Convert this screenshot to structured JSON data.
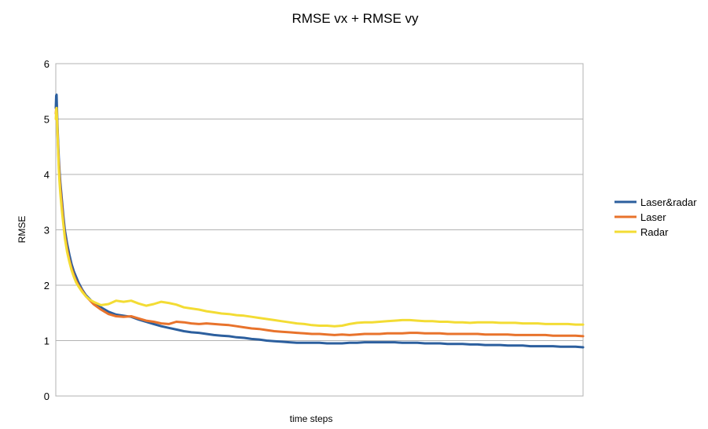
{
  "chart_data": {
    "type": "line",
    "title": "RMSE vx + RMSE vy",
    "xlabel": "time steps",
    "ylabel": "RMSE",
    "ylim": [
      0,
      6
    ],
    "yticks": [
      "0",
      "1",
      "2",
      "3",
      "4",
      "5",
      "6"
    ],
    "grid": true,
    "legend_position": "right",
    "x": [
      0,
      0.5,
      1,
      2,
      3,
      4,
      5,
      6,
      8,
      10,
      12,
      15,
      18,
      21,
      24,
      27,
      30,
      35,
      40,
      45,
      50,
      60,
      70,
      80,
      90,
      100,
      110,
      120,
      130,
      140,
      150,
      160,
      170,
      180,
      190,
      200,
      210,
      220,
      230,
      240,
      250,
      260,
      270,
      280,
      290,
      300,
      310,
      320,
      330,
      340,
      350,
      360,
      370,
      380,
      390,
      400,
      410,
      420,
      430,
      440,
      450,
      460,
      470,
      480,
      490,
      500,
      510,
      520,
      530,
      540,
      550,
      560,
      570,
      580,
      590,
      600,
      610,
      620,
      630,
      640,
      650,
      660,
      670,
      680,
      690,
      700
    ],
    "series": [
      {
        "name": "Laser&radar",
        "color": "#2c5f9e",
        "values": [
          5.2,
          5.42,
          5.44,
          5.0,
          4.6,
          4.3,
          4.05,
          3.85,
          3.55,
          3.25,
          3.0,
          2.75,
          2.55,
          2.38,
          2.25,
          2.15,
          2.05,
          1.92,
          1.82,
          1.75,
          1.68,
          1.6,
          1.52,
          1.47,
          1.45,
          1.43,
          1.38,
          1.34,
          1.3,
          1.26,
          1.23,
          1.2,
          1.17,
          1.15,
          1.14,
          1.12,
          1.1,
          1.09,
          1.08,
          1.06,
          1.05,
          1.03,
          1.02,
          1.0,
          0.99,
          0.98,
          0.97,
          0.96,
          0.96,
          0.96,
          0.96,
          0.95,
          0.95,
          0.95,
          0.96,
          0.96,
          0.97,
          0.97,
          0.97,
          0.97,
          0.97,
          0.96,
          0.96,
          0.96,
          0.95,
          0.95,
          0.95,
          0.94,
          0.94,
          0.94,
          0.93,
          0.93,
          0.92,
          0.92,
          0.92,
          0.91,
          0.91,
          0.91,
          0.9,
          0.9,
          0.9,
          0.9,
          0.89,
          0.89,
          0.89,
          0.88
        ]
      },
      {
        "name": "Laser",
        "color": "#e8732c",
        "values": [
          5.1,
          5.18,
          5.2,
          4.9,
          4.5,
          4.2,
          3.95,
          3.75,
          3.45,
          3.15,
          2.9,
          2.65,
          2.45,
          2.3,
          2.18,
          2.08,
          2.0,
          1.9,
          1.8,
          1.73,
          1.66,
          1.56,
          1.48,
          1.44,
          1.43,
          1.44,
          1.4,
          1.36,
          1.34,
          1.31,
          1.3,
          1.34,
          1.33,
          1.31,
          1.3,
          1.31,
          1.3,
          1.29,
          1.28,
          1.26,
          1.24,
          1.22,
          1.21,
          1.19,
          1.17,
          1.16,
          1.15,
          1.14,
          1.13,
          1.12,
          1.12,
          1.11,
          1.1,
          1.11,
          1.1,
          1.11,
          1.12,
          1.12,
          1.12,
          1.13,
          1.13,
          1.13,
          1.14,
          1.14,
          1.13,
          1.13,
          1.13,
          1.12,
          1.12,
          1.12,
          1.12,
          1.12,
          1.11,
          1.11,
          1.11,
          1.11,
          1.1,
          1.1,
          1.1,
          1.1,
          1.1,
          1.09,
          1.09,
          1.09,
          1.09,
          1.08
        ]
      },
      {
        "name": "Radar",
        "color": "#f3dc34",
        "values": [
          5.0,
          5.15,
          5.2,
          4.85,
          4.45,
          4.1,
          3.85,
          3.65,
          3.35,
          3.1,
          2.85,
          2.6,
          2.42,
          2.27,
          2.15,
          2.05,
          1.98,
          1.88,
          1.8,
          1.74,
          1.7,
          1.64,
          1.66,
          1.72,
          1.7,
          1.72,
          1.67,
          1.63,
          1.66,
          1.7,
          1.68,
          1.65,
          1.6,
          1.58,
          1.56,
          1.53,
          1.51,
          1.49,
          1.48,
          1.46,
          1.45,
          1.43,
          1.41,
          1.39,
          1.37,
          1.35,
          1.33,
          1.31,
          1.3,
          1.28,
          1.27,
          1.27,
          1.26,
          1.27,
          1.3,
          1.32,
          1.33,
          1.33,
          1.34,
          1.35,
          1.36,
          1.37,
          1.37,
          1.36,
          1.35,
          1.35,
          1.34,
          1.34,
          1.33,
          1.33,
          1.32,
          1.33,
          1.33,
          1.33,
          1.32,
          1.32,
          1.32,
          1.31,
          1.31,
          1.31,
          1.3,
          1.3,
          1.3,
          1.3,
          1.29,
          1.29
        ]
      }
    ]
  }
}
